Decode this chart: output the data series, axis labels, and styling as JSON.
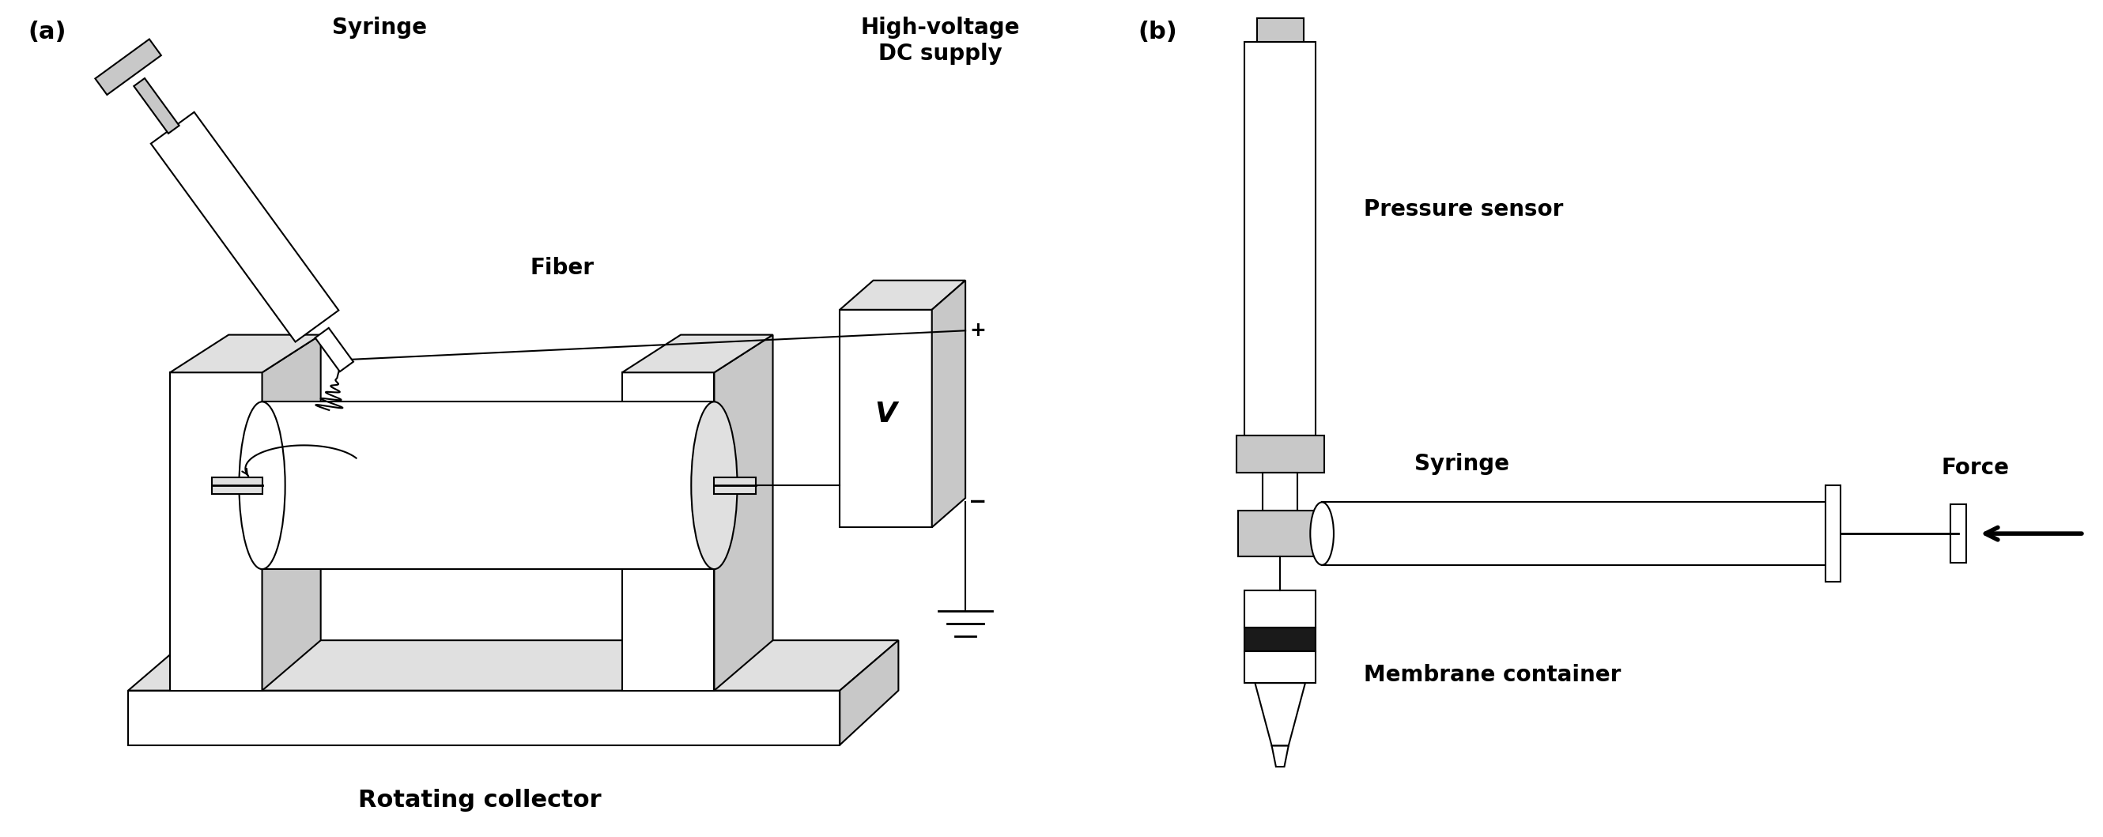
{
  "fig_width": 26.6,
  "fig_height": 10.59,
  "bg_color": "#ffffff",
  "lw": 1.5,
  "lw_thick": 4.0,
  "gray_fill": "#c8c8c8",
  "light_gray": "#e0e0e0",
  "white_fill": "#ffffff",
  "dark": "#000000",
  "label_a": "(a)",
  "label_b": "(b)",
  "label_fontsize": 22,
  "caption_fontsize": 20,
  "caption_fontweight": "bold",
  "caption_a": "Rotating collector",
  "caption_a_syringe": "Syringe",
  "caption_a_hv": "High-voltage\nDC supply",
  "caption_a_fiber": "Fiber",
  "caption_b_pressure": "Pressure sensor",
  "caption_b_syringe": "Syringe",
  "caption_b_force": "Force",
  "caption_b_membrane": "Membrane container"
}
